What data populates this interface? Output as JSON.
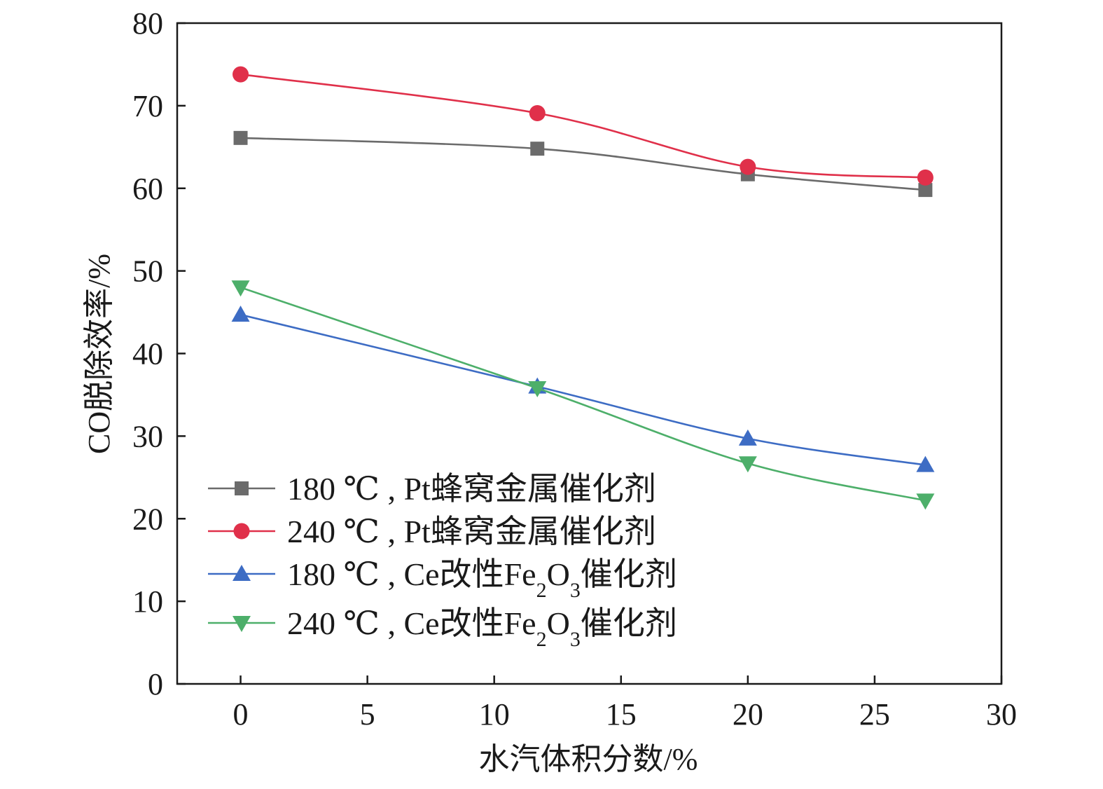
{
  "chart_data": {
    "type": "line",
    "xlabel": "水汽体积分数/%",
    "ylabel": "CO脱除效率/%",
    "xlim": [
      -2.5,
      30
    ],
    "ylim": [
      0,
      80
    ],
    "xticks": [
      0,
      5,
      10,
      15,
      20,
      25,
      30
    ],
    "yticks": [
      0,
      10,
      20,
      30,
      40,
      50,
      60,
      70,
      80
    ],
    "x": [
      0,
      11.7,
      20,
      27
    ],
    "grid": false,
    "legend_position": "bottom-left",
    "series": [
      {
        "name": "180 ℃ , Pt蜂窝金属催化剂",
        "name_parts": {
          "temp": "180 ℃",
          "sep": " , ",
          "text": "Pt蜂窝金属催化剂"
        },
        "marker": "square",
        "color": "#6b6b6b",
        "values": [
          66.1,
          64.8,
          61.7,
          59.8
        ]
      },
      {
        "name": "240 ℃ , Pt蜂窝金属催化剂",
        "name_parts": {
          "temp": "240 ℃",
          "sep": " , ",
          "text": "Pt蜂窝金属催化剂"
        },
        "marker": "circle",
        "color": "#e0304a",
        "values": [
          73.8,
          69.1,
          62.6,
          61.3
        ]
      },
      {
        "name": "180 ℃ , Ce改性Fe2O3催化剂",
        "name_parts": {
          "temp": "180 ℃",
          "sep": " , ",
          "pre": "Ce改性Fe",
          "sub1": "2",
          "mid": "O",
          "sub2": "3",
          "post": "催化剂"
        },
        "marker": "triangle-up",
        "color": "#3d6cc4",
        "values": [
          44.7,
          36.0,
          29.7,
          26.5
        ]
      },
      {
        "name": "240 ℃ , Ce改性Fe2O3催化剂",
        "name_parts": {
          "temp": "240 ℃",
          "sep": " , ",
          "pre": "Ce改性Fe",
          "sub1": "2",
          "mid": "O",
          "sub2": "3",
          "post": "催化剂"
        },
        "marker": "triangle-down",
        "color": "#4daf6a",
        "values": [
          48.0,
          35.8,
          26.7,
          22.2
        ]
      }
    ]
  }
}
